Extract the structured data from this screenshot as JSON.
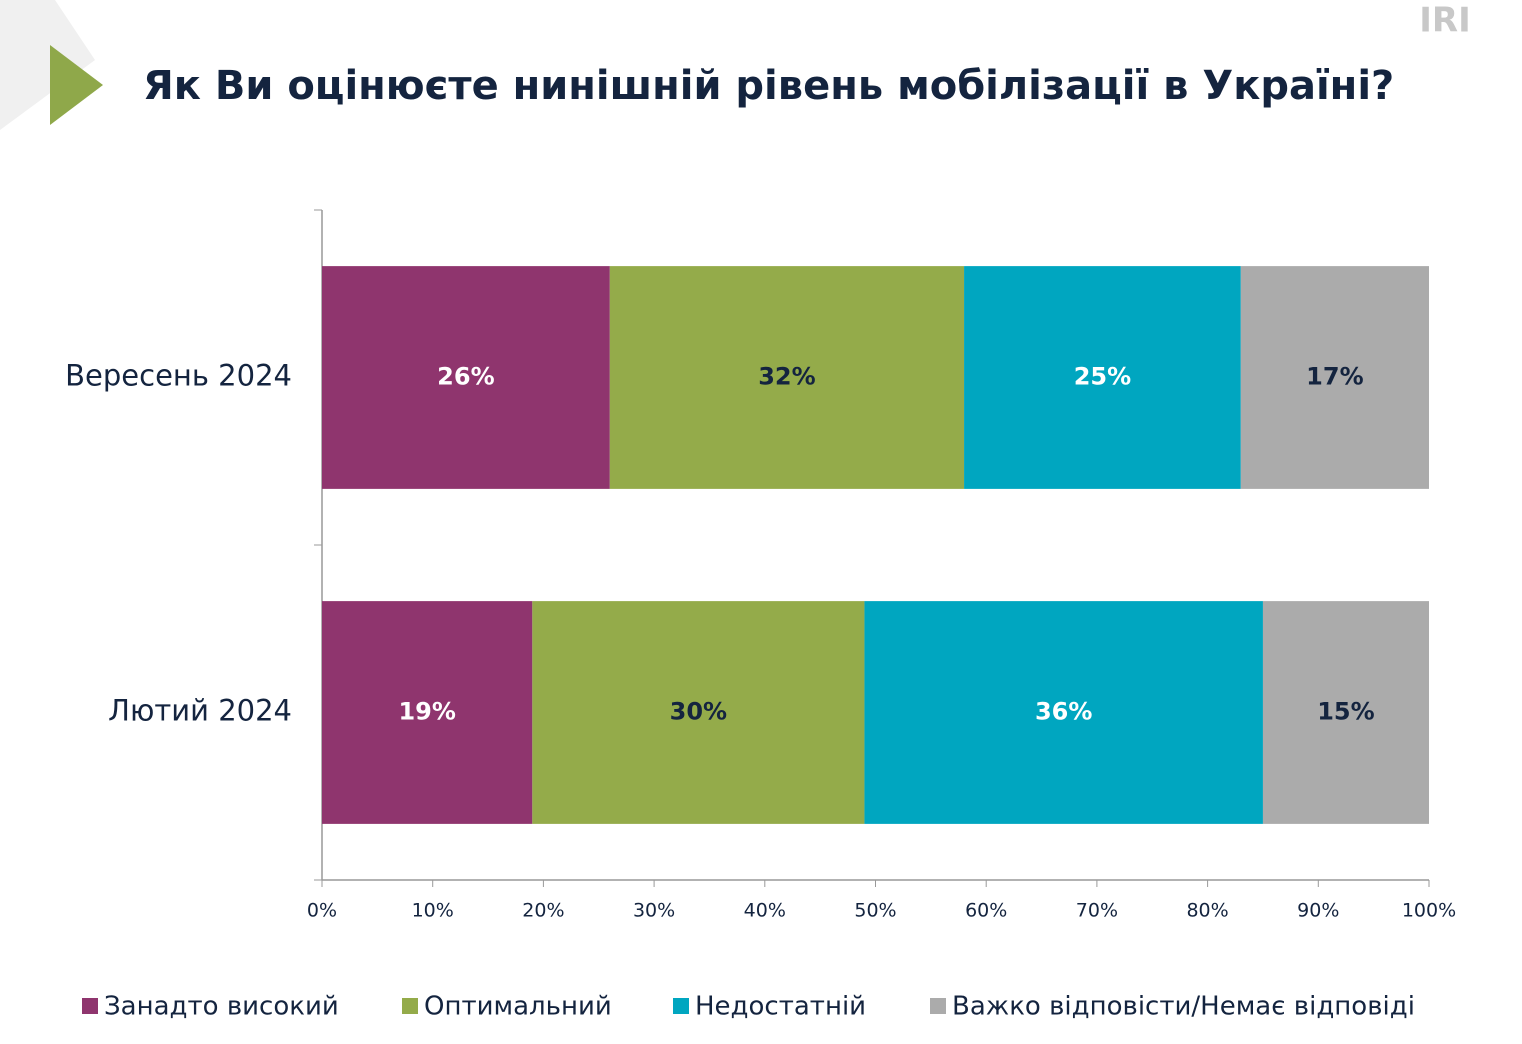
{
  "logo": "IRI",
  "chart_data": {
    "type": "stacked_barh",
    "title": "Як Ви оцінюєте нинішній рівень мобілізації в Україні?",
    "categories": [
      "Вересень 2024",
      "Лютий 2024"
    ],
    "series": [
      {
        "name": "Занадто високий",
        "color": "#8f356e",
        "values": [
          26,
          19
        ],
        "value_labels": [
          "26%",
          "19%"
        ]
      },
      {
        "name": "Оптимальний",
        "color": "#94ab4a",
        "values": [
          32,
          30
        ],
        "value_labels": [
          "32%",
          "30%"
        ]
      },
      {
        "name": "Недостатній",
        "color": "#00a6c0",
        "values": [
          25,
          36
        ],
        "value_labels": [
          "25%",
          "36%"
        ]
      },
      {
        "name": "Важко відповісти/Немає відповіді",
        "color": "#ababab",
        "values": [
          17,
          15
        ],
        "value_labels": [
          "17%",
          "15%"
        ]
      }
    ],
    "xlim": [
      0,
      100
    ],
    "xticks": [
      {
        "value": 0,
        "label": "0%"
      },
      {
        "value": 10,
        "label": "10%"
      },
      {
        "value": 20,
        "label": "20%"
      },
      {
        "value": 30,
        "label": "30%"
      },
      {
        "value": 40,
        "label": "40%"
      },
      {
        "value": 50,
        "label": "50%"
      },
      {
        "value": 60,
        "label": "60%"
      },
      {
        "value": 70,
        "label": "70%"
      },
      {
        "value": 80,
        "label": "80%"
      },
      {
        "value": 90,
        "label": "90%"
      },
      {
        "value": 100,
        "label": "100%"
      }
    ],
    "legend": "bottom"
  }
}
